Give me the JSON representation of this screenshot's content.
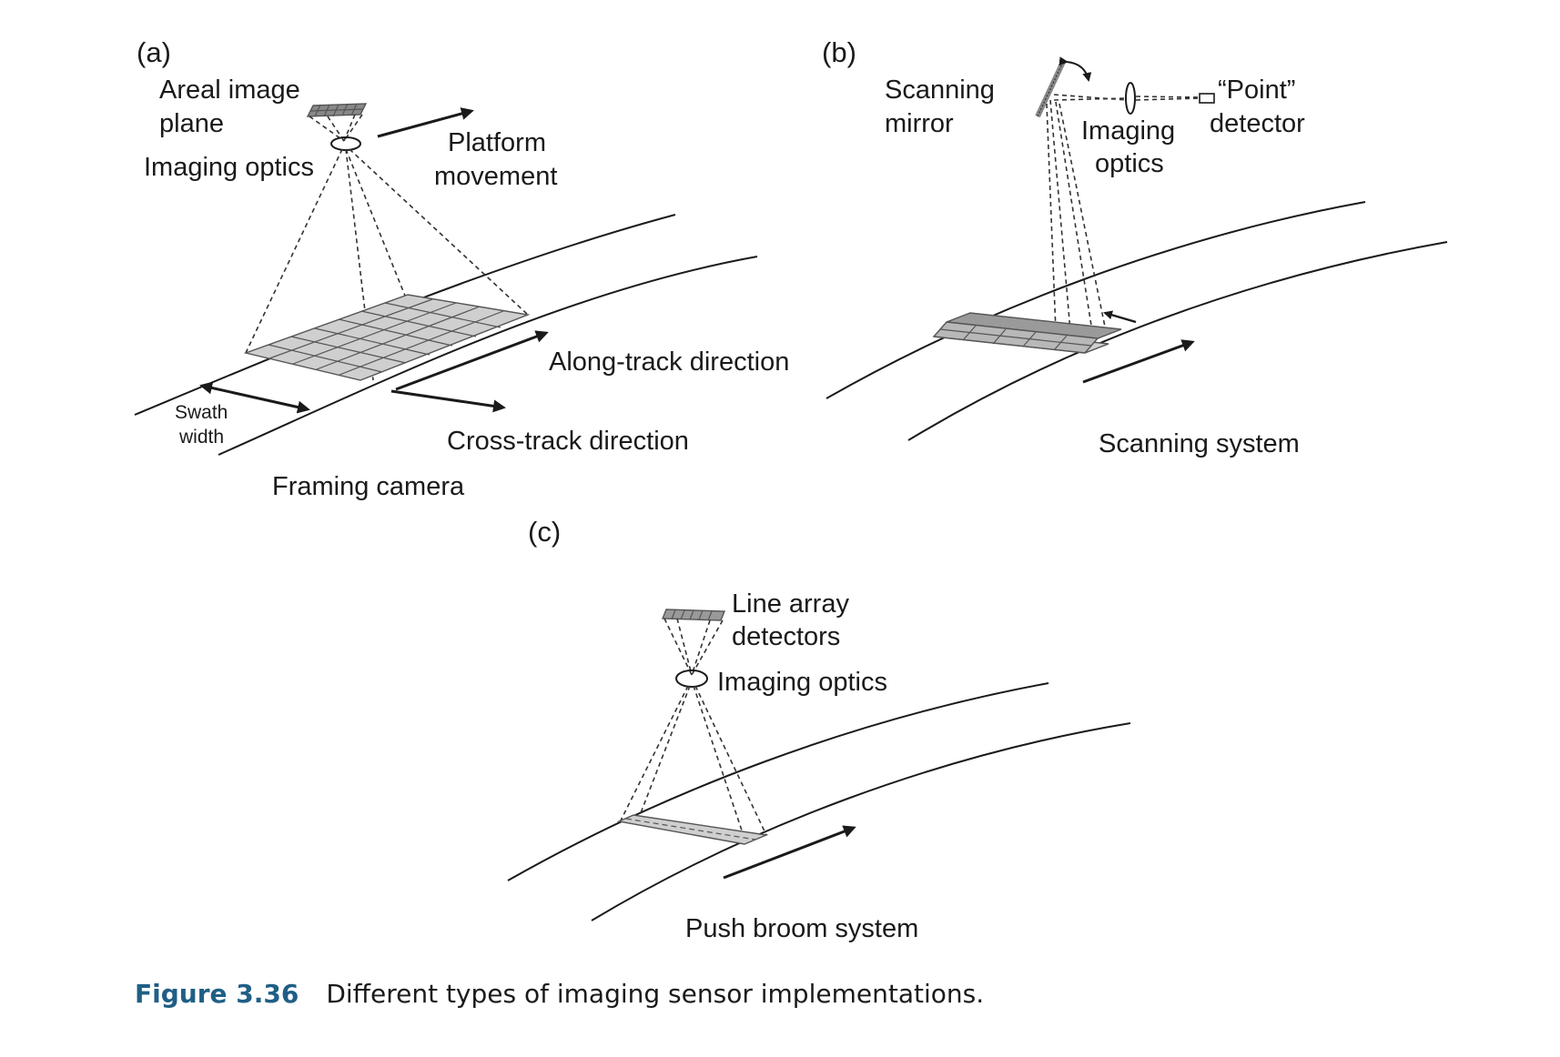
{
  "panels": {
    "a": {
      "tag": "(a)",
      "areal_line1": "Areal image",
      "areal_line2": "plane",
      "imaging_optics": "Imaging optics",
      "platform_line1": "Platform",
      "platform_line2": "movement",
      "along_track": "Along-track direction",
      "cross_track": "Cross-track direction",
      "swath_line1": "Swath",
      "swath_line2": "width",
      "title": "Framing camera"
    },
    "b": {
      "tag": "(b)",
      "mirror_line1": "Scanning",
      "mirror_line2": "mirror",
      "optics_line1": "Imaging",
      "optics_line2": "optics",
      "detector_line1": "“Point”",
      "detector_line2": "detector",
      "title": "Scanning system"
    },
    "c": {
      "tag": "(c)",
      "line_array_line1": "Line array",
      "line_array_line2": "detectors",
      "imaging_optics": "Imaging optics",
      "title": "Push broom system"
    }
  },
  "caption": {
    "number": "Figure 3.36",
    "text": "Different types of imaging sensor implementations."
  }
}
